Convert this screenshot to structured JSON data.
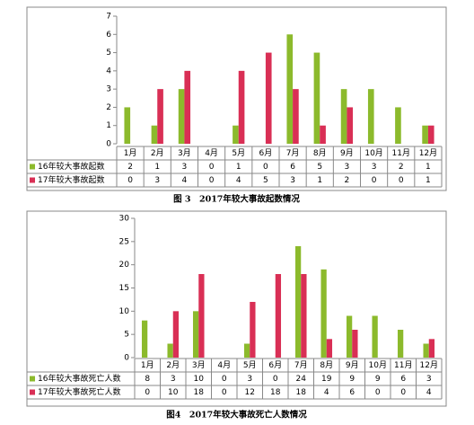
{
  "chart_data": [
    {
      "type": "bar",
      "title": "图 3　2017年较大事故起数情况",
      "categories": [
        "1月",
        "2月",
        "3月",
        "4月",
        "5月",
        "6月",
        "7月",
        "8月",
        "9月",
        "10月",
        "11月",
        "12月"
      ],
      "series": [
        {
          "name": "16年较大事故起数",
          "color": "#8cba2c",
          "values": [
            2,
            1,
            3,
            0,
            1,
            0,
            6,
            5,
            3,
            3,
            2,
            1
          ]
        },
        {
          "name": "17年较大事故起数",
          "color": "#d92f55",
          "values": [
            0,
            3,
            4,
            0,
            4,
            5,
            3,
            1,
            2,
            0,
            0,
            1
          ]
        }
      ],
      "ylim": [
        0,
        7
      ],
      "yticks": [
        0,
        1,
        2,
        3,
        4,
        5,
        6,
        7
      ]
    },
    {
      "type": "bar",
      "title": "图4　2017年较大事故死亡人数情况",
      "categories": [
        "1月",
        "2月",
        "3月",
        "4月",
        "5月",
        "6月",
        "7月",
        "8月",
        "9月",
        "10月",
        "11月",
        "12月"
      ],
      "series": [
        {
          "name": "16年较大事故死亡人数",
          "color": "#8cba2c",
          "values": [
            8,
            3,
            10,
            0,
            3,
            0,
            24,
            19,
            9,
            9,
            6,
            3
          ]
        },
        {
          "name": "17年较大事故死亡人数",
          "color": "#d92f55",
          "values": [
            0,
            10,
            18,
            0,
            12,
            18,
            18,
            4,
            6,
            0,
            0,
            4
          ]
        }
      ],
      "ylim": [
        0,
        30
      ],
      "yticks": [
        0,
        5,
        10,
        15,
        20,
        25,
        30
      ]
    }
  ]
}
